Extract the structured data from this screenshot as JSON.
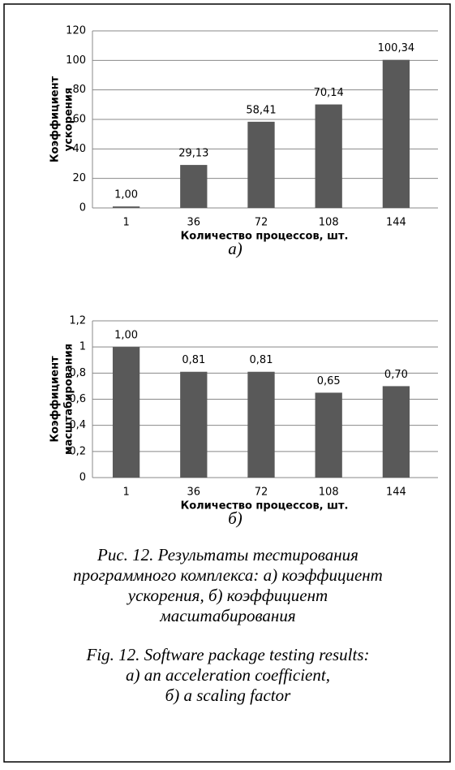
{
  "chart_data": [
    {
      "type": "bar",
      "sublabel": "а)",
      "ylabel": [
        "Коэффициент",
        "ускорения"
      ],
      "xlabel": "Количество процессов, шт.",
      "categories": [
        "1",
        "36",
        "72",
        "108",
        "144"
      ],
      "values": [
        1,
        29.13,
        58.41,
        70.14,
        100.34
      ],
      "value_labels": [
        "1,00",
        "29,13",
        "58,41",
        "70,14",
        "100,34"
      ],
      "color": "#595959",
      "ylim": [
        0,
        120
      ],
      "yticks": [
        0,
        20,
        40,
        60,
        80,
        100,
        120
      ],
      "grid": true
    },
    {
      "type": "bar",
      "sublabel": "б)",
      "ylabel": [
        "Коэффициент",
        "масштабирования"
      ],
      "xlabel": "Количество процессов, шт.",
      "categories": [
        "1",
        "36",
        "72",
        "108",
        "144"
      ],
      "values": [
        1,
        0.81,
        0.81,
        0.65,
        0.7
      ],
      "value_labels": [
        "1,00",
        "0,81",
        "0,81",
        "0,65",
        "0,70"
      ],
      "color": "#595959",
      "ylim": [
        0,
        1.2
      ],
      "yticks": [
        0,
        {
          "value": 0.2,
          "label": "0,2"
        },
        {
          "value": 0.4,
          "label": "0,4"
        },
        {
          "value": 0.6,
          "label": "0,6"
        },
        {
          "value": 0.8,
          "label": "0,8"
        },
        1,
        {
          "value": 1.2,
          "label": "1,2"
        }
      ],
      "grid": true
    }
  ],
  "caption_ru": [
    "Рис. 12. Результаты тестирования",
    "программного комплекса: а) коэффициент",
    "ускорения, б) коэффициент",
    "масштабирования"
  ],
  "caption_en": [
    "Fig. 12. Software package testing results:",
    "a) an acceleration coefficient,",
    "б) a scaling factor"
  ]
}
